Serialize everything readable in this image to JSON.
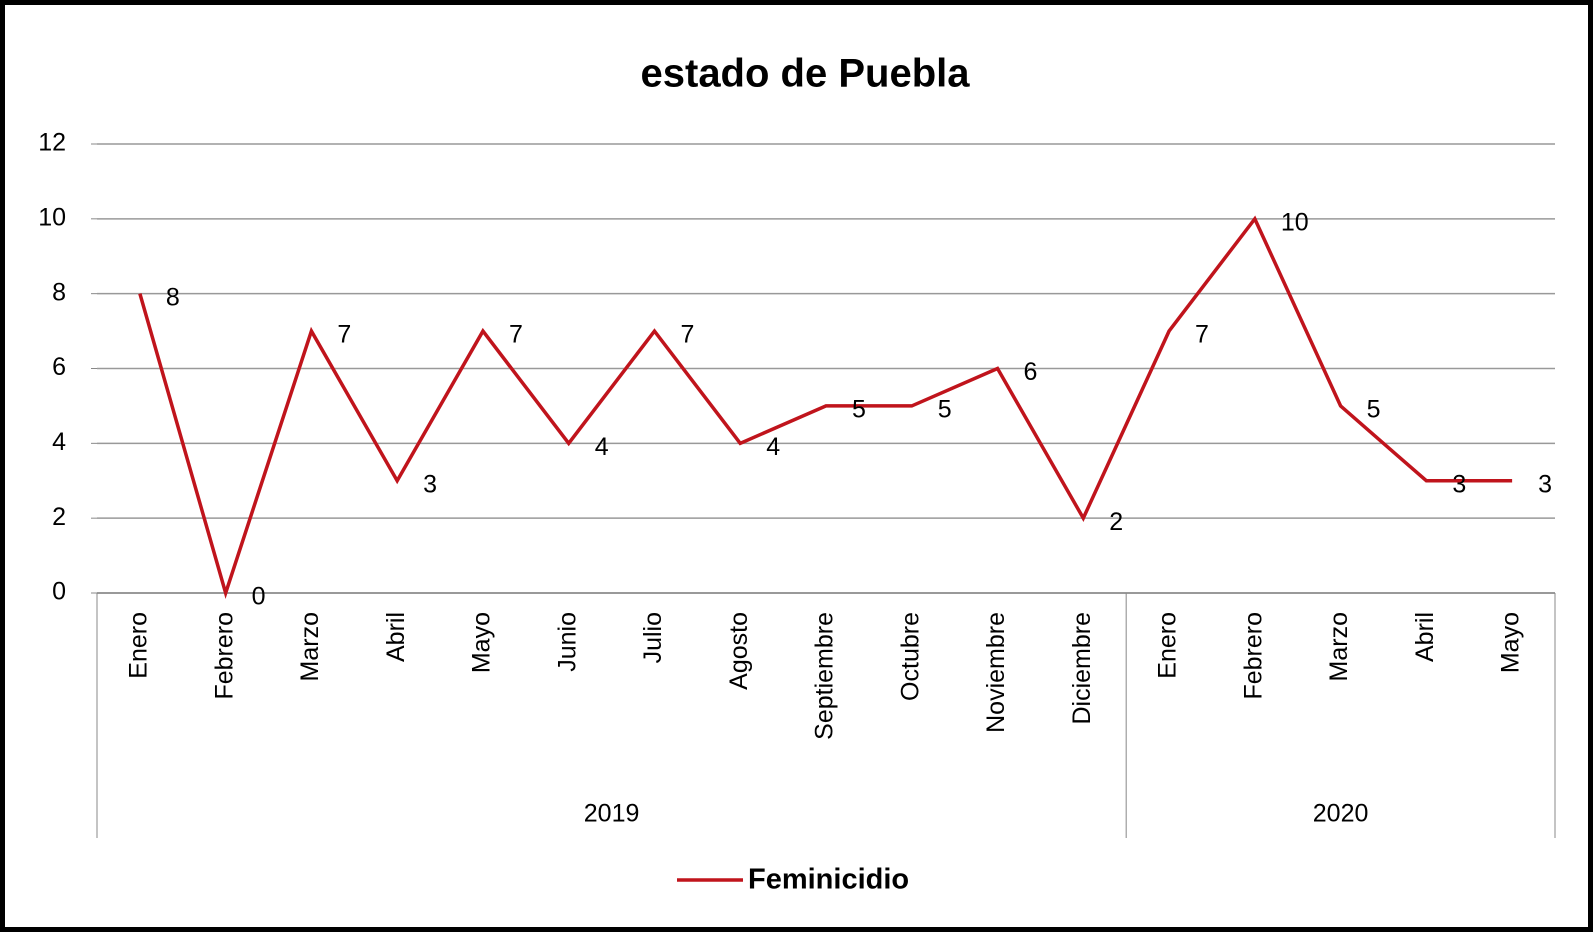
{
  "chart_data": {
    "type": "line",
    "title": "estado de Puebla",
    "groups": [
      {
        "name": "2019",
        "categories": [
          "Enero",
          "Febrero",
          "Marzo",
          "Abril",
          "Mayo",
          "Junio",
          "Julio",
          "Agosto",
          "Septiembre",
          "Octubre",
          "Noviembre",
          "Diciembre"
        ]
      },
      {
        "name": "2020",
        "categories": [
          "Enero",
          "Febrero",
          "Marzo",
          "Abril",
          "Mayo"
        ]
      }
    ],
    "series": [
      {
        "name": "Feminicidio",
        "color": "#c0141c",
        "values": [
          8,
          0,
          7,
          3,
          7,
          4,
          7,
          4,
          5,
          5,
          6,
          2,
          7,
          10,
          5,
          3,
          3
        ]
      }
    ],
    "ylim": [
      0,
      12
    ],
    "yticks": [
      0,
      2,
      4,
      6,
      8,
      10,
      12
    ],
    "grid": true,
    "legend": "bottom"
  }
}
